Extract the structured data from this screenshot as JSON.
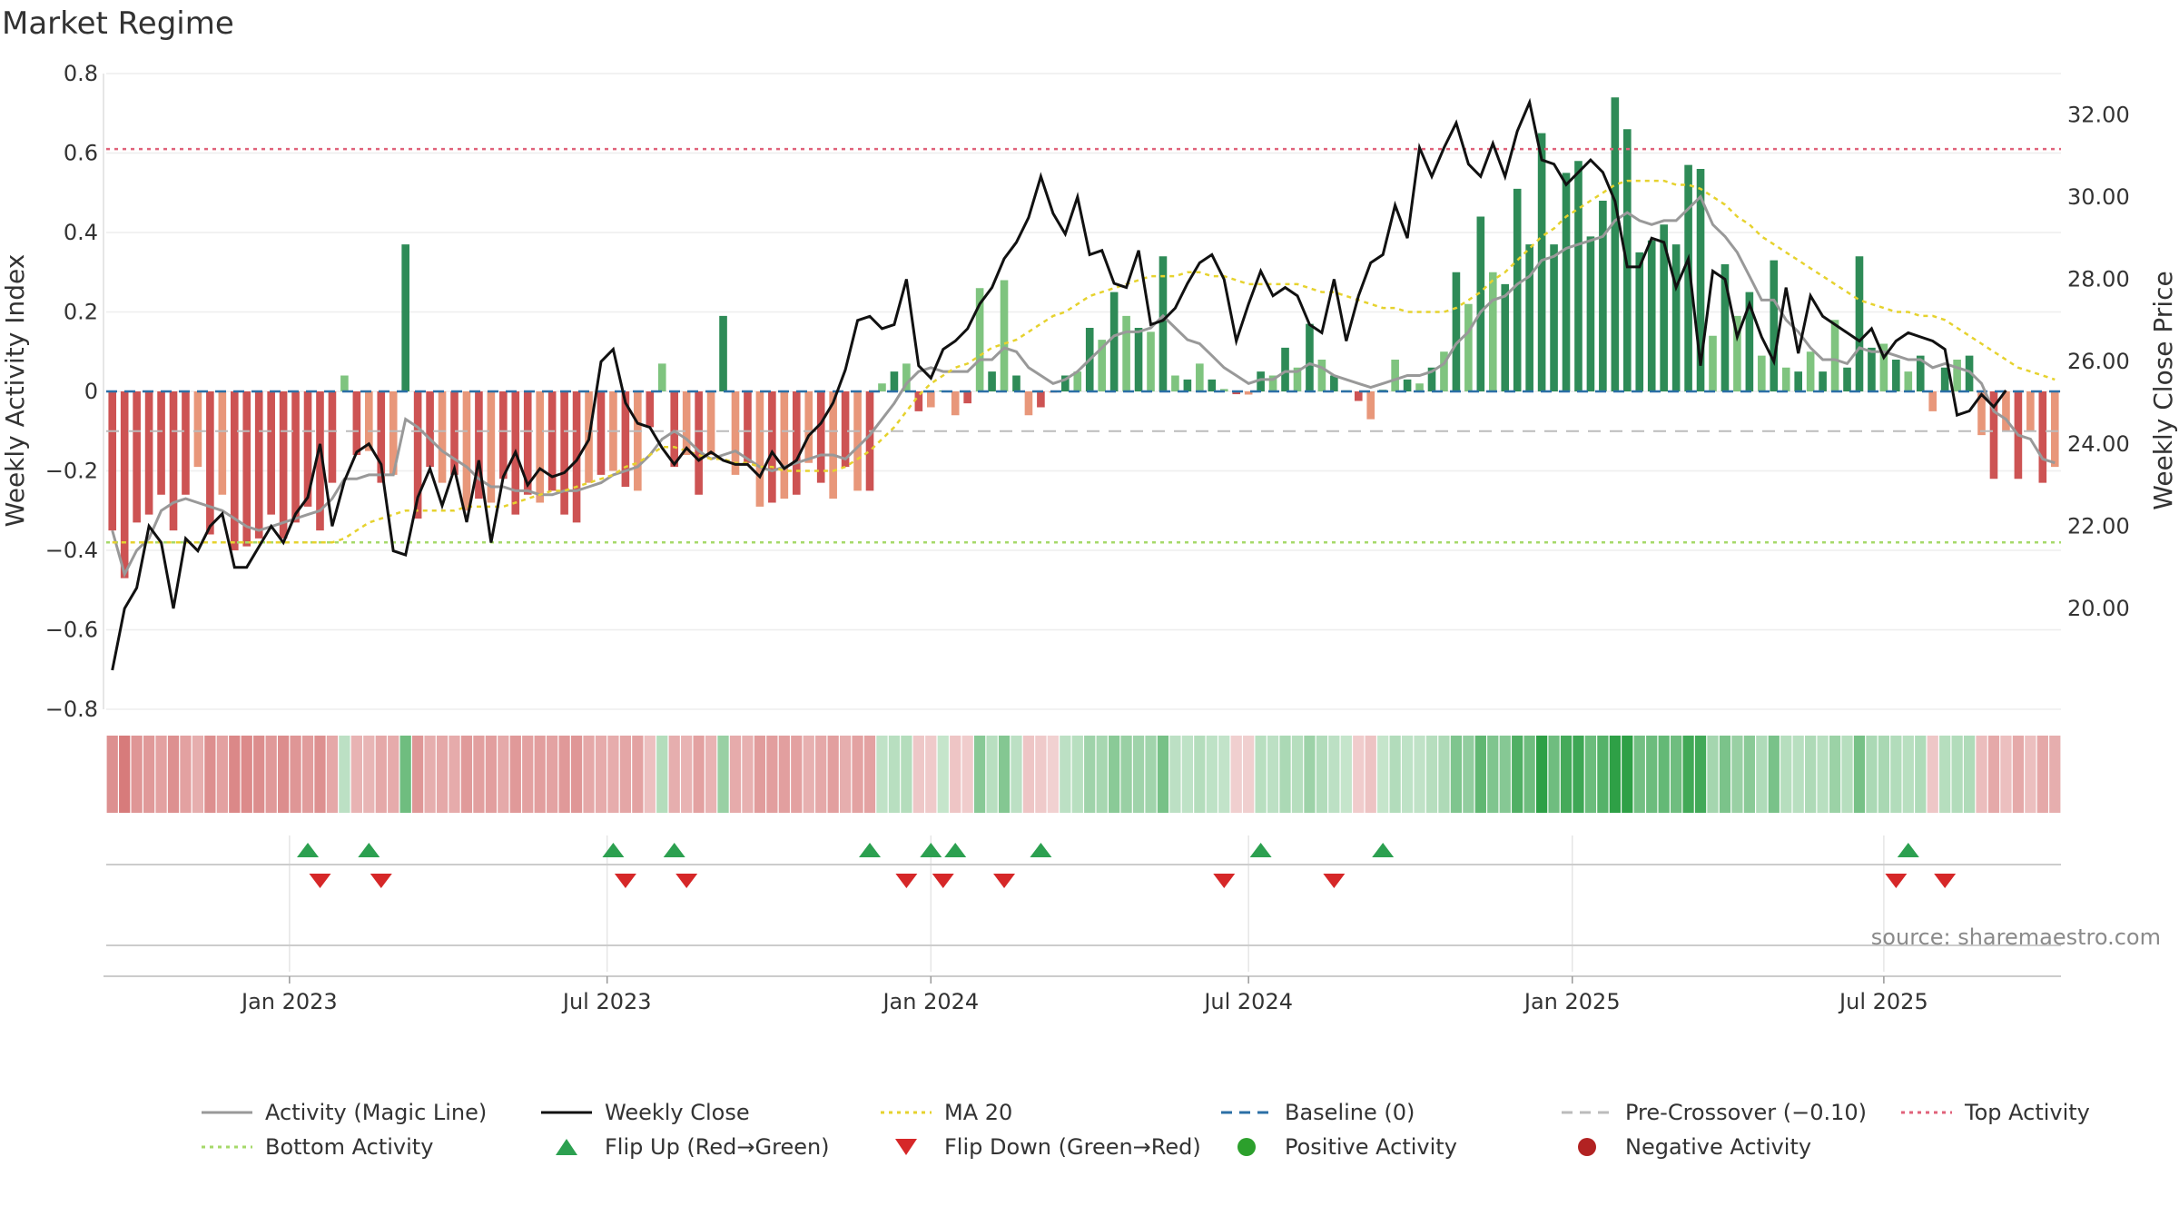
{
  "chart_data": {
    "type": "bar",
    "title": "Market Regime",
    "ylabel": "Weekly Activity Index",
    "y2label": "Weekly Close Price",
    "ylim": [
      -0.8,
      0.8
    ],
    "y2lim": [
      17.55,
      33.0
    ],
    "y_ticks": [
      "0.8",
      "0.6",
      "0.4",
      "0.2",
      "0",
      "−0.2",
      "−0.4",
      "−0.6",
      "−0.8"
    ],
    "y_tick_values": [
      0.8,
      0.6,
      0.4,
      0.2,
      0,
      -0.2,
      -0.4,
      -0.6,
      -0.8
    ],
    "y2_ticks": [
      "32.00",
      "30.00",
      "28.00",
      "26.00",
      "24.00",
      "22.00",
      "20.00"
    ],
    "y2_tick_values": [
      32,
      30,
      28,
      26,
      24,
      22,
      20
    ],
    "x_ticks": [
      "Jan 2023",
      "Jul 2023",
      "Jan 2024",
      "Jul 2024",
      "Jan 2025",
      "Jul 2025"
    ],
    "x_tick_index": [
      14.5,
      40.5,
      67,
      93,
      119.5,
      145
    ],
    "top_activity": 0.61,
    "bottom_activity": -0.38,
    "pre_crossover": -0.1,
    "baseline": 0,
    "grid": true,
    "legend_position": "bottom",
    "source_text": "source: sharemaestro.com",
    "activity": [
      -0.35,
      -0.47,
      -0.33,
      -0.31,
      -0.26,
      -0.35,
      -0.26,
      -0.19,
      -0.36,
      -0.26,
      -0.4,
      -0.39,
      -0.37,
      -0.31,
      -0.37,
      -0.33,
      -0.29,
      -0.35,
      -0.23,
      0.04,
      -0.16,
      -0.15,
      -0.23,
      -0.21,
      0.37,
      -0.32,
      -0.19,
      -0.23,
      -0.21,
      -0.3,
      -0.27,
      -0.28,
      -0.22,
      -0.31,
      -0.26,
      -0.28,
      -0.25,
      -0.31,
      -0.33,
      -0.23,
      -0.21,
      -0.2,
      -0.24,
      -0.25,
      -0.09,
      0.07,
      -0.19,
      -0.16,
      -0.26,
      -0.16,
      0.19,
      -0.21,
      -0.18,
      -0.29,
      -0.28,
      -0.27,
      -0.26,
      -0.18,
      -0.23,
      -0.27,
      -0.19,
      -0.25,
      -0.25,
      0.02,
      0.05,
      0.07,
      -0.05,
      -0.04,
      0.002,
      -0.06,
      -0.03,
      0.26,
      0.05,
      0.28,
      0.04,
      -0.06,
      -0.04,
      -0.003,
      0.04,
      0.05,
      0.16,
      0.13,
      0.25,
      0.19,
      0.16,
      0.15,
      0.34,
      0.04,
      0.03,
      0.07,
      0.03,
      0.006,
      -0.007,
      -0.008,
      0.05,
      0.04,
      0.11,
      0.06,
      0.17,
      0.08,
      0.04,
      0.003,
      -0.024,
      -0.07,
      0.004,
      0.08,
      0.03,
      0.02,
      0.06,
      0.1,
      0.3,
      0.22,
      0.44,
      0.3,
      0.27,
      0.51,
      0.37,
      0.65,
      0.37,
      0.55,
      0.58,
      0.39,
      0.48,
      0.74,
      0.66,
      0.35,
      0.38,
      0.42,
      0.37,
      0.57,
      0.56,
      0.14,
      0.32,
      0.19,
      0.25,
      0.09,
      0.33,
      0.06,
      0.05,
      0.1,
      0.05,
      0.18,
      0.06,
      0.34,
      0.11,
      0.12,
      0.08,
      0.05,
      0.09,
      -0.05,
      0.06,
      0.08,
      0.09,
      -0.11,
      -0.22,
      -0.1,
      -0.22,
      -0.1,
      -0.23,
      -0.19
    ],
    "weekly_close": [
      18.5,
      20.0,
      20.5,
      22.0,
      21.6,
      20.0,
      21.7,
      21.4,
      22.0,
      22.3,
      21.0,
      21.0,
      21.5,
      22.0,
      21.6,
      22.3,
      22.7,
      24.0,
      22.0,
      23.1,
      23.8,
      24.0,
      23.5,
      21.4,
      21.3,
      22.7,
      23.4,
      22.5,
      23.4,
      22.1,
      23.6,
      21.6,
      23.2,
      23.8,
      23.0,
      23.4,
      23.2,
      23.3,
      23.6,
      24.1,
      26.0,
      26.3,
      25.0,
      24.5,
      24.4,
      23.9,
      23.5,
      23.9,
      23.6,
      23.8,
      23.6,
      23.5,
      23.5,
      23.2,
      23.8,
      23.4,
      23.6,
      24.2,
      24.5,
      25.0,
      25.8,
      27.0,
      27.1,
      26.8,
      26.9,
      28.0,
      25.9,
      25.6,
      26.3,
      26.5,
      26.8,
      27.4,
      27.8,
      28.5,
      28.9,
      29.5,
      30.5,
      29.6,
      29.1,
      30.0,
      28.6,
      28.7,
      27.9,
      27.8,
      28.7,
      26.9,
      27.0,
      27.3,
      27.9,
      28.4,
      28.6,
      28.0,
      26.5,
      27.4,
      28.2,
      27.6,
      27.8,
      27.6,
      26.9,
      26.7,
      28.0,
      26.5,
      27.6,
      28.4,
      28.6,
      29.8,
      29.0,
      31.2,
      30.5,
      31.2,
      31.8,
      30.8,
      30.5,
      31.3,
      30.5,
      31.6,
      32.3,
      30.9,
      30.8,
      30.3,
      30.6,
      30.9,
      30.6,
      29.9,
      28.3,
      28.3,
      29.0,
      28.9,
      27.8,
      28.5,
      25.9,
      28.2,
      28.0,
      26.6,
      27.4,
      26.6,
      26.0,
      27.8,
      26.2,
      27.6,
      27.1,
      26.9,
      26.7,
      26.5,
      26.8,
      26.1,
      26.5,
      26.7,
      26.6,
      26.5,
      26.3,
      24.7,
      24.8,
      25.2,
      24.9,
      25.3
    ],
    "magic_line": [
      -0.35,
      -0.46,
      -0.4,
      -0.37,
      -0.3,
      -0.28,
      -0.27,
      -0.28,
      -0.29,
      -0.3,
      -0.32,
      -0.34,
      -0.35,
      -0.34,
      -0.33,
      -0.32,
      -0.31,
      -0.3,
      -0.27,
      -0.22,
      -0.22,
      -0.21,
      -0.21,
      -0.21,
      -0.07,
      -0.09,
      -0.12,
      -0.15,
      -0.17,
      -0.19,
      -0.22,
      -0.24,
      -0.24,
      -0.25,
      -0.25,
      -0.26,
      -0.26,
      -0.25,
      -0.25,
      -0.24,
      -0.23,
      -0.21,
      -0.2,
      -0.19,
      -0.16,
      -0.12,
      -0.1,
      -0.12,
      -0.15,
      -0.17,
      -0.16,
      -0.15,
      -0.17,
      -0.19,
      -0.2,
      -0.19,
      -0.18,
      -0.17,
      -0.16,
      -0.16,
      -0.17,
      -0.14,
      -0.11,
      -0.07,
      -0.03,
      0.02,
      0.05,
      0.06,
      0.05,
      0.05,
      0.05,
      0.08,
      0.08,
      0.11,
      0.1,
      0.06,
      0.04,
      0.02,
      0.03,
      0.05,
      0.08,
      0.11,
      0.14,
      0.15,
      0.15,
      0.16,
      0.19,
      0.16,
      0.13,
      0.12,
      0.09,
      0.06,
      0.04,
      0.02,
      0.03,
      0.03,
      0.05,
      0.05,
      0.07,
      0.06,
      0.04,
      0.03,
      0.02,
      0.01,
      0.02,
      0.03,
      0.04,
      0.04,
      0.05,
      0.07,
      0.12,
      0.15,
      0.2,
      0.23,
      0.24,
      0.27,
      0.29,
      0.33,
      0.34,
      0.36,
      0.37,
      0.38,
      0.39,
      0.43,
      0.45,
      0.43,
      0.42,
      0.43,
      0.43,
      0.46,
      0.49,
      0.42,
      0.39,
      0.35,
      0.29,
      0.23,
      0.23,
      0.18,
      0.15,
      0.11,
      0.08,
      0.08,
      0.07,
      0.11,
      0.1,
      0.1,
      0.09,
      0.08,
      0.08,
      0.06,
      0.07,
      0.06,
      0.05,
      0.02,
      -0.05,
      -0.07,
      -0.11,
      -0.12,
      -0.17,
      -0.18
    ],
    "ma20": [
      -0.38,
      -0.38,
      -0.38,
      -0.38,
      -0.38,
      -0.38,
      -0.38,
      -0.38,
      -0.38,
      -0.38,
      -0.38,
      -0.38,
      -0.38,
      -0.38,
      -0.38,
      -0.38,
      -0.38,
      -0.38,
      -0.38,
      -0.37,
      -0.35,
      -0.33,
      -0.32,
      -0.31,
      -0.3,
      -0.3,
      -0.3,
      -0.3,
      -0.3,
      -0.29,
      -0.29,
      -0.29,
      -0.29,
      -0.28,
      -0.27,
      -0.26,
      -0.25,
      -0.25,
      -0.24,
      -0.23,
      -0.22,
      -0.21,
      -0.19,
      -0.18,
      -0.16,
      -0.14,
      -0.14,
      -0.15,
      -0.16,
      -0.17,
      -0.17,
      -0.18,
      -0.18,
      -0.19,
      -0.19,
      -0.2,
      -0.2,
      -0.2,
      -0.2,
      -0.2,
      -0.19,
      -0.17,
      -0.15,
      -0.12,
      -0.09,
      -0.05,
      -0.01,
      0.02,
      0.04,
      0.06,
      0.07,
      0.09,
      0.11,
      0.12,
      0.13,
      0.15,
      0.17,
      0.19,
      0.2,
      0.22,
      0.24,
      0.25,
      0.26,
      0.27,
      0.28,
      0.29,
      0.29,
      0.29,
      0.3,
      0.3,
      0.29,
      0.29,
      0.28,
      0.27,
      0.27,
      0.27,
      0.27,
      0.27,
      0.26,
      0.25,
      0.25,
      0.24,
      0.23,
      0.22,
      0.21,
      0.21,
      0.2,
      0.2,
      0.2,
      0.2,
      0.21,
      0.23,
      0.25,
      0.28,
      0.3,
      0.33,
      0.36,
      0.39,
      0.41,
      0.44,
      0.46,
      0.48,
      0.5,
      0.52,
      0.53,
      0.53,
      0.53,
      0.53,
      0.52,
      0.52,
      0.51,
      0.49,
      0.47,
      0.44,
      0.42,
      0.39,
      0.37,
      0.35,
      0.33,
      0.31,
      0.29,
      0.27,
      0.25,
      0.23,
      0.22,
      0.21,
      0.2,
      0.2,
      0.19,
      0.19,
      0.18,
      0.16,
      0.14,
      0.12,
      0.1,
      0.08,
      0.06,
      0.05,
      0.04,
      0.03
    ],
    "flip_up": [
      16,
      21,
      41,
      46,
      62,
      67,
      69,
      76,
      94,
      104,
      147
    ],
    "flip_down": [
      17,
      22,
      42,
      47,
      65,
      68,
      73,
      91,
      100,
      146,
      150
    ],
    "colors": {
      "bar_pos_strong": "#2e8b57",
      "bar_pos_weak": "#7fc47f",
      "bar_neg_strong": "#cd5353",
      "bar_neg_weak": "#e8977a",
      "magic_line": "#999999",
      "weekly_close": "#111111",
      "ma20": "#e6d22e",
      "baseline": "#2b6fa6",
      "pre_crossover": "#bbbbbb",
      "top_activity": "#e0627a",
      "bottom_activity": "#a6d96a",
      "flip_up": "#2ca050",
      "flip_down": "#d62728",
      "positive_activity": "#2ca02c",
      "negative_activity": "#b22222"
    },
    "legend": [
      {
        "label": "Activity (Magic Line)",
        "kind": "line",
        "color": "#999999",
        "dash": ""
      },
      {
        "label": "Weekly Close",
        "kind": "line",
        "color": "#111111",
        "dash": ""
      },
      {
        "label": "MA 20",
        "kind": "line",
        "color": "#e6d22e",
        "dash": "4,5"
      },
      {
        "label": "Baseline (0)",
        "kind": "line",
        "color": "#2b6fa6",
        "dash": "12,8"
      },
      {
        "label": "Pre-Crossover (−0.10)",
        "kind": "line",
        "color": "#bbbbbb",
        "dash": "12,8"
      },
      {
        "label": "Top Activity",
        "kind": "line",
        "color": "#e0627a",
        "dash": "4,5"
      },
      {
        "label": "Bottom Activity",
        "kind": "line",
        "color": "#a6d96a",
        "dash": "4,5"
      },
      {
        "label": "Flip Up (Red→Green)",
        "kind": "tri-up",
        "color": "#2ca050",
        "dash": ""
      },
      {
        "label": "Flip Down (Green→Red)",
        "kind": "tri-down",
        "color": "#d62728",
        "dash": ""
      },
      {
        "label": "Positive Activity",
        "kind": "dot",
        "color": "#2ca02c",
        "dash": ""
      },
      {
        "label": "Negative Activity",
        "kind": "dot",
        "color": "#b22222",
        "dash": ""
      }
    ]
  }
}
